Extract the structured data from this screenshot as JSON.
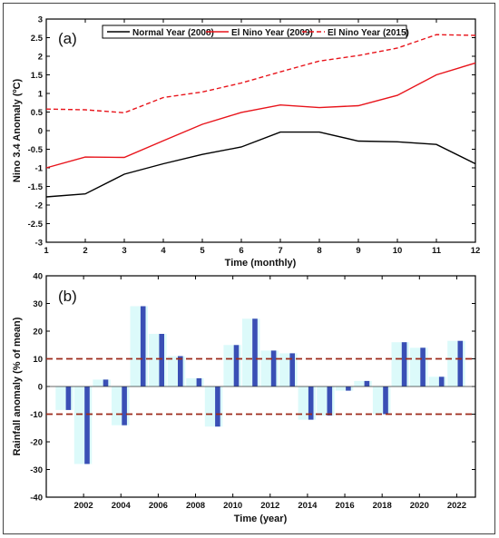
{
  "colors": {
    "normal": "#000000",
    "nino2009": "#e8141b",
    "nino2015": "#e8141b",
    "bar": "#3a4fb5",
    "shade": "#dcfafa",
    "threshold": "#9c2a1a"
  },
  "chart_data": [
    {
      "panel_label": "(a)",
      "type": "line",
      "xlabel": "Time (monthly)",
      "ylabel": "Nino 3.4 Anomaly (ºC)",
      "xlim": [
        1,
        12
      ],
      "ylim": [
        -3,
        3
      ],
      "x_ticks": [
        "1",
        "2",
        "3",
        "4",
        "5",
        "6",
        "7",
        "8",
        "9",
        "10",
        "11",
        "12"
      ],
      "y_ticks": [
        "-3",
        "-2.5",
        "-2",
        "-1.5",
        "-1",
        "-0.5",
        "0",
        "0.5",
        "1",
        "1.5",
        "2",
        "2.5",
        "3"
      ],
      "legend_position": "top",
      "x": [
        1,
        2,
        3,
        4,
        5,
        6,
        7,
        8,
        9,
        10,
        11,
        12
      ],
      "series": [
        {
          "name": "Normal Year (2008)",
          "style": "solid",
          "color": "#000000",
          "values": [
            -1.78,
            -1.7,
            -1.17,
            -0.89,
            -0.64,
            -0.44,
            -0.04,
            -0.04,
            -0.28,
            -0.3,
            -0.37,
            -0.89
          ]
        },
        {
          "name": "El Nino Year (2009)",
          "style": "solid",
          "color": "#e8141b",
          "values": [
            -1.0,
            -0.71,
            -0.72,
            -0.27,
            0.17,
            0.49,
            0.69,
            0.62,
            0.67,
            0.95,
            1.5,
            1.82
          ]
        },
        {
          "name": "El Nino Year (2015)",
          "style": "dashed",
          "color": "#e8141b",
          "values": [
            0.58,
            0.56,
            0.48,
            0.89,
            1.04,
            1.28,
            1.58,
            1.87,
            2.02,
            2.22,
            2.58,
            2.56
          ]
        }
      ]
    },
    {
      "panel_label": "(b)",
      "type": "bar",
      "xlabel": "Time (year)",
      "ylabel": "Rainfall anomaly (% of mean)",
      "xlim": [
        2000,
        2023
      ],
      "ylim": [
        -40,
        40
      ],
      "x_ticks": [
        "2002",
        "2004",
        "2006",
        "2008",
        "2010",
        "2012",
        "2014",
        "2016",
        "2018",
        "2020",
        "2022"
      ],
      "y_ticks": [
        "-40",
        "-30",
        "-20",
        "-10",
        "0",
        "10",
        "20",
        "30",
        "40"
      ],
      "thresholds": [
        10,
        -10
      ],
      "categories": [
        2001,
        2002,
        2003,
        2004,
        2005,
        2006,
        2007,
        2008,
        2009,
        2010,
        2011,
        2012,
        2013,
        2014,
        2015,
        2016,
        2017,
        2018,
        2019,
        2020,
        2021,
        2022
      ],
      "values": [
        -8.5,
        -28,
        2.5,
        -14,
        29,
        19,
        11,
        3,
        -14.5,
        15,
        24.5,
        13,
        12,
        -12,
        -10.5,
        -1.5,
        2,
        -10,
        16,
        14,
        3.5,
        16.5
      ]
    }
  ]
}
